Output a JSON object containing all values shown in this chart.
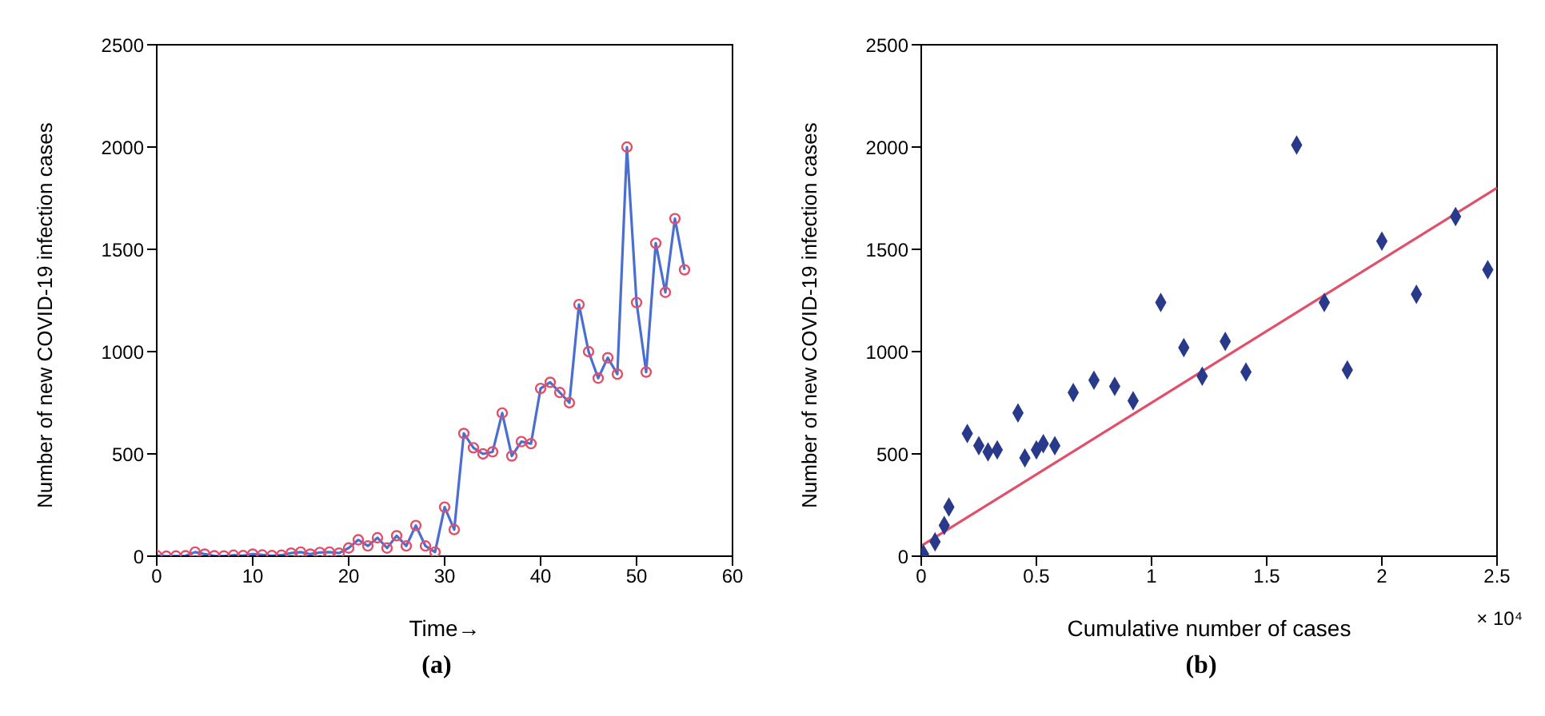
{
  "chart_data": [
    {
      "type": "line",
      "title": "(a)",
      "xlabel": "Time→",
      "ylabel": "Number of new COVID-19 infection cases",
      "xlim": [
        0,
        60
      ],
      "xticks": [
        0,
        10,
        20,
        30,
        40,
        50,
        60
      ],
      "ylim": [
        0,
        2500
      ],
      "yticks": [
        0,
        500,
        1000,
        1500,
        2000,
        2500
      ],
      "grid": false,
      "x": [
        0,
        1,
        2,
        3,
        4,
        5,
        6,
        7,
        8,
        9,
        10,
        11,
        12,
        13,
        14,
        15,
        16,
        17,
        18,
        19,
        20,
        21,
        22,
        23,
        24,
        25,
        26,
        27,
        28,
        29,
        30,
        31,
        32,
        33,
        34,
        35,
        36,
        37,
        38,
        39,
        40,
        41,
        42,
        43,
        44,
        45,
        46,
        47,
        48,
        49,
        50,
        51,
        52,
        53,
        54,
        55
      ],
      "series": [
        {
          "color": "#4a6fd0",
          "marker": "none",
          "values": [
            3,
            0,
            1,
            2,
            20,
            10,
            2,
            1,
            5,
            3,
            10,
            6,
            3,
            5,
            15,
            20,
            10,
            18,
            20,
            15,
            40,
            80,
            50,
            90,
            40,
            100,
            50,
            150,
            50,
            20,
            240,
            130,
            600,
            530,
            500,
            510,
            700,
            490,
            560,
            550,
            820,
            850,
            800,
            750,
            1230,
            1000,
            870,
            970,
            890,
            2000,
            1240,
            900,
            1530,
            1290,
            1650,
            1400
          ]
        },
        {
          "type": "scatter",
          "color": "#e0506a",
          "marker": "circle",
          "values": [
            3,
            0,
            1,
            2,
            20,
            10,
            2,
            1,
            5,
            3,
            10,
            6,
            3,
            5,
            15,
            20,
            10,
            18,
            20,
            15,
            40,
            80,
            50,
            90,
            40,
            100,
            50,
            150,
            50,
            20,
            240,
            130,
            600,
            530,
            500,
            510,
            700,
            490,
            560,
            550,
            820,
            850,
            800,
            750,
            1230,
            1000,
            870,
            970,
            890,
            2000,
            1240,
            900,
            1530,
            1290,
            1650,
            1400
          ]
        }
      ]
    },
    {
      "type": "scatter",
      "title": "(b)",
      "xlabel": "Cumulative number of cases",
      "ylabel": "Number of new COVID-19 infection cases",
      "annotations": [
        "× 10⁴"
      ],
      "xlim": [
        0,
        2.5
      ],
      "xticks": [
        0,
        0.5,
        1,
        1.5,
        2,
        2.5
      ],
      "ylim": [
        0,
        2500
      ],
      "yticks": [
        0,
        500,
        1000,
        1500,
        2000,
        2500
      ],
      "grid": false,
      "series": [
        {
          "type": "line",
          "color": "#e0506a",
          "marker": "none",
          "x": [
            0,
            2.5
          ],
          "values": [
            50,
            1800
          ]
        },
        {
          "color": "#2a3a8a",
          "marker": "diamond",
          "x": [
            0.01,
            0.06,
            0.1,
            0.12,
            0.2,
            0.25,
            0.29,
            0.33,
            0.42,
            0.45,
            0.5,
            0.53,
            0.58,
            0.66,
            0.75,
            0.84,
            0.92,
            1.04,
            1.14,
            1.22,
            1.32,
            1.41,
            1.63,
            1.75,
            1.85,
            2.0,
            2.15,
            2.32,
            2.46
          ],
          "values": [
            10,
            70,
            150,
            240,
            600,
            540,
            510,
            520,
            700,
            480,
            520,
            550,
            540,
            800,
            860,
            830,
            760,
            1240,
            1020,
            880,
            1050,
            900,
            2010,
            1240,
            910,
            1540,
            1280,
            1660,
            1400
          ]
        }
      ]
    }
  ]
}
